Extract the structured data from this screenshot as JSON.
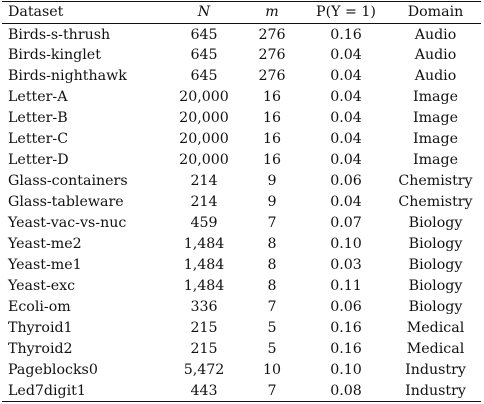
{
  "table": {
    "headers": {
      "dataset": "Dataset",
      "n": "N",
      "m": "m",
      "p": "P(Y = 1)",
      "domain": "Domain"
    },
    "rows": [
      {
        "dataset": "Birds-s-thrush",
        "n": "645",
        "m": "276",
        "p": "0.16",
        "domain": "Audio"
      },
      {
        "dataset": "Birds-kinglet",
        "n": "645",
        "m": "276",
        "p": "0.04",
        "domain": "Audio"
      },
      {
        "dataset": "Birds-nighthawk",
        "n": "645",
        "m": "276",
        "p": "0.04",
        "domain": "Audio"
      },
      {
        "dataset": "Letter-A",
        "n": "20,000",
        "m": "16",
        "p": "0.04",
        "domain": "Image"
      },
      {
        "dataset": "Letter-B",
        "n": "20,000",
        "m": "16",
        "p": "0.04",
        "domain": "Image"
      },
      {
        "dataset": "Letter-C",
        "n": "20,000",
        "m": "16",
        "p": "0.04",
        "domain": "Image"
      },
      {
        "dataset": "Letter-D",
        "n": "20,000",
        "m": "16",
        "p": "0.04",
        "domain": "Image"
      },
      {
        "dataset": "Glass-containers",
        "n": "214",
        "m": "9",
        "p": "0.06",
        "domain": "Chemistry"
      },
      {
        "dataset": "Glass-tableware",
        "n": "214",
        "m": "9",
        "p": "0.04",
        "domain": "Chemistry"
      },
      {
        "dataset": "Yeast-vac-vs-nuc",
        "n": "459",
        "m": "7",
        "p": "0.07",
        "domain": "Biology"
      },
      {
        "dataset": "Yeast-me2",
        "n": "1,484",
        "m": "8",
        "p": "0.10",
        "domain": "Biology"
      },
      {
        "dataset": "Yeast-me1",
        "n": "1,484",
        "m": "8",
        "p": "0.03",
        "domain": "Biology"
      },
      {
        "dataset": "Yeast-exc",
        "n": "1,484",
        "m": "8",
        "p": "0.11",
        "domain": "Biology"
      },
      {
        "dataset": "Ecoli-om",
        "n": "336",
        "m": "7",
        "p": "0.06",
        "domain": "Biology"
      },
      {
        "dataset": "Thyroid1",
        "n": "215",
        "m": "5",
        "p": "0.16",
        "domain": "Medical"
      },
      {
        "dataset": "Thyroid2",
        "n": "215",
        "m": "5",
        "p": "0.16",
        "domain": "Medical"
      },
      {
        "dataset": "Pageblocks0",
        "n": "5,472",
        "m": "10",
        "p": "0.10",
        "domain": "Industry"
      },
      {
        "dataset": "Led7digit1",
        "n": "443",
        "m": "7",
        "p": "0.08",
        "domain": "Industry"
      }
    ]
  }
}
